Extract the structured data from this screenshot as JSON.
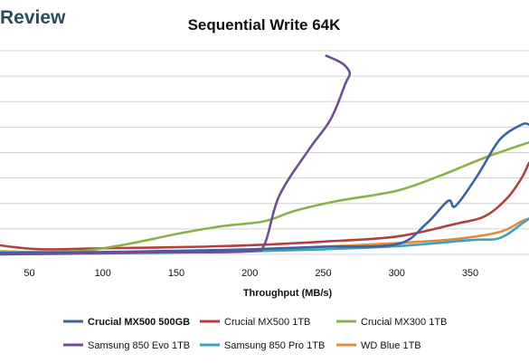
{
  "brand_text": "Review",
  "chart_data": {
    "type": "line",
    "title": "Sequential Write 64K",
    "xlabel": "Throughput (MB/s)",
    "ylabel": "",
    "xlim": [
      30,
      390
    ],
    "ylim": [
      0,
      8
    ],
    "x_ticks": [
      50,
      100,
      150,
      200,
      250,
      300,
      350
    ],
    "grid": "horizontal",
    "legend_position": "bottom",
    "series": [
      {
        "name": "Crucial MX500 500GB",
        "color": "#3b62a6",
        "bold": true,
        "points": [
          [
            30,
            0.06
          ],
          [
            80,
            0.08
          ],
          [
            150,
            0.14
          ],
          [
            200,
            0.2
          ],
          [
            250,
            0.3
          ],
          [
            300,
            0.4
          ],
          [
            320,
            1.2
          ],
          [
            335,
            2.1
          ],
          [
            340,
            1.9
          ],
          [
            355,
            3.1
          ],
          [
            370,
            4.5
          ],
          [
            385,
            5.1
          ],
          [
            390,
            5.1
          ]
        ]
      },
      {
        "name": "Crucial MX500 1TB",
        "color": "#b0413e",
        "bold": false,
        "points": [
          [
            30,
            0.36
          ],
          [
            40,
            0.28
          ],
          [
            60,
            0.2
          ],
          [
            100,
            0.24
          ],
          [
            150,
            0.28
          ],
          [
            200,
            0.36
          ],
          [
            250,
            0.5
          ],
          [
            300,
            0.7
          ],
          [
            340,
            1.2
          ],
          [
            360,
            1.5
          ],
          [
            375,
            2.2
          ],
          [
            385,
            3.0
          ],
          [
            390,
            3.6
          ]
        ]
      },
      {
        "name": "Crucial MX300 1TB",
        "color": "#8cb048",
        "bold": false,
        "points": [
          [
            30,
            0.12
          ],
          [
            60,
            0.1
          ],
          [
            90,
            0.16
          ],
          [
            120,
            0.44
          ],
          [
            150,
            0.8
          ],
          [
            180,
            1.1
          ],
          [
            210,
            1.3
          ],
          [
            230,
            1.7
          ],
          [
            260,
            2.1
          ],
          [
            300,
            2.5
          ],
          [
            330,
            3.1
          ],
          [
            360,
            3.8
          ],
          [
            390,
            4.4
          ]
        ]
      },
      {
        "name": "Samsung 850 Evo 1TB",
        "color": "#6e4f96",
        "bold": false,
        "points": [
          [
            30,
            0.0
          ],
          [
            100,
            0.05
          ],
          [
            150,
            0.08
          ],
          [
            200,
            0.12
          ],
          [
            210,
            0.4
          ],
          [
            220,
            2.3
          ],
          [
            240,
            4.1
          ],
          [
            255,
            5.3
          ],
          [
            265,
            6.7
          ],
          [
            268,
            7.1
          ],
          [
            265,
            7.4
          ],
          [
            260,
            7.6
          ],
          [
            252,
            7.8
          ]
        ]
      },
      {
        "name": "Samsung 850 Pro 1TB",
        "color": "#3aa3bf",
        "bold": false,
        "points": [
          [
            30,
            0.0
          ],
          [
            100,
            0.04
          ],
          [
            150,
            0.08
          ],
          [
            200,
            0.12
          ],
          [
            250,
            0.2
          ],
          [
            300,
            0.32
          ],
          [
            350,
            0.56
          ],
          [
            370,
            0.64
          ],
          [
            385,
            1.2
          ],
          [
            390,
            1.4
          ]
        ]
      },
      {
        "name": "WD Blue 1TB",
        "color": "#e08a3c",
        "bold": false,
        "points": [
          [
            30,
            0.02
          ],
          [
            100,
            0.06
          ],
          [
            150,
            0.12
          ],
          [
            200,
            0.18
          ],
          [
            250,
            0.3
          ],
          [
            300,
            0.44
          ],
          [
            340,
            0.6
          ],
          [
            370,
            0.88
          ],
          [
            385,
            1.3
          ],
          [
            390,
            1.4
          ]
        ]
      }
    ]
  }
}
